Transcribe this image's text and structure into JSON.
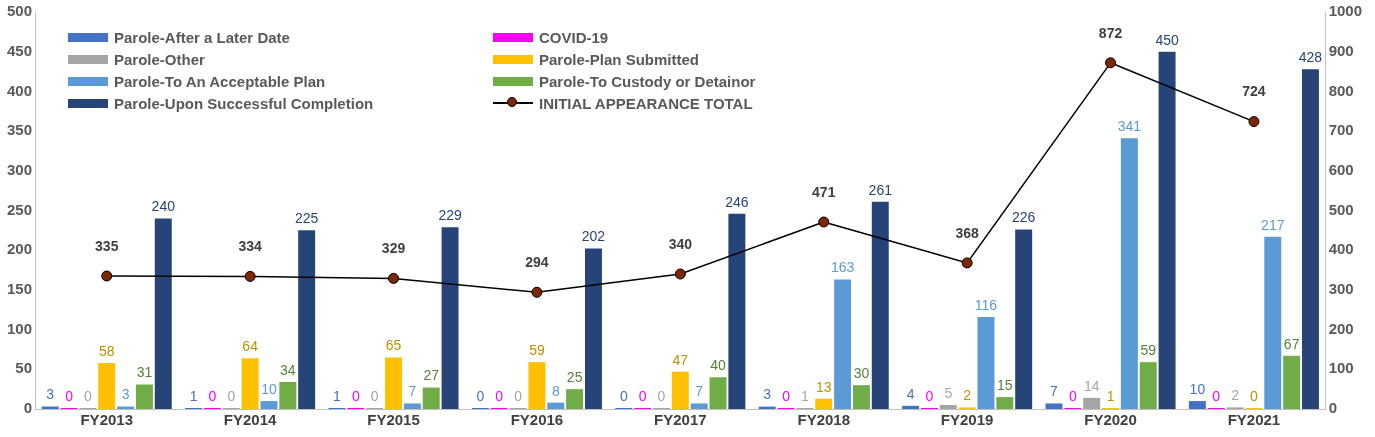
{
  "chart_data": {
    "type": "bar",
    "categories": [
      "FY2013",
      "FY2014",
      "FY2015",
      "FY2016",
      "FY2017",
      "FY2018",
      "FY2019",
      "FY2020",
      "FY2021"
    ],
    "series": [
      {
        "name": "Parole-After a Later Date",
        "color": "#4472c4",
        "values": [
          3,
          1,
          1,
          0,
          0,
          3,
          4,
          7,
          10
        ]
      },
      {
        "name": "COVID-19",
        "color": "#ff00ff",
        "values": [
          0,
          0,
          0,
          0,
          0,
          0,
          0,
          0,
          0
        ]
      },
      {
        "name": "Parole-Other",
        "color": "#a5a5a5",
        "values": [
          0,
          0,
          0,
          0,
          0,
          1,
          5,
          14,
          2
        ]
      },
      {
        "name": "Parole-Plan Submitted",
        "color": "#ffc000",
        "values": [
          58,
          64,
          65,
          59,
          47,
          13,
          2,
          1,
          0
        ]
      },
      {
        "name": "Parole-To An Acceptable Plan",
        "color": "#5b9bd5",
        "values": [
          3,
          10,
          7,
          8,
          7,
          163,
          116,
          341,
          217
        ]
      },
      {
        "name": "Parole-To Custody or Detainor",
        "color": "#70ad47",
        "values": [
          31,
          34,
          27,
          25,
          40,
          30,
          15,
          59,
          67
        ]
      },
      {
        "name": "Parole-Upon Successful Completion",
        "color": "#264478",
        "values": [
          240,
          225,
          229,
          202,
          246,
          261,
          226,
          450,
          428
        ]
      },
      {
        "name": "INITIAL APPEARANCE TOTAL",
        "type": "line",
        "axis": "y2",
        "color": "#000000",
        "marker": "circle",
        "values": [
          335,
          334,
          329,
          294,
          340,
          471,
          368,
          872,
          724
        ]
      }
    ],
    "ylim": [
      0,
      500
    ],
    "yticks": [
      0,
      50,
      100,
      150,
      200,
      250,
      300,
      350,
      400,
      450,
      500
    ],
    "y2lim": [
      0,
      1000
    ],
    "y2ticks": [
      0,
      100,
      200,
      300,
      400,
      500,
      600,
      700,
      800,
      900,
      1000
    ],
    "grid": false,
    "legend": "top left",
    "data_labels": true
  }
}
